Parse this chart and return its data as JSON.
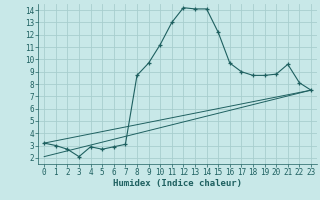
{
  "xlabel": "Humidex (Indice chaleur)",
  "background_color": "#c8e8e8",
  "grid_color": "#a8cece",
  "line_color": "#1e6060",
  "xlim": [
    -0.5,
    23.5
  ],
  "ylim": [
    1.5,
    14.5
  ],
  "xticks": [
    0,
    1,
    2,
    3,
    4,
    5,
    6,
    7,
    8,
    9,
    10,
    11,
    12,
    13,
    14,
    15,
    16,
    17,
    18,
    19,
    20,
    21,
    22,
    23
  ],
  "yticks": [
    2,
    3,
    4,
    5,
    6,
    7,
    8,
    9,
    10,
    11,
    12,
    13,
    14
  ],
  "series1_x": [
    0,
    1,
    2,
    3,
    4,
    5,
    6,
    7,
    8,
    9,
    10,
    11,
    12,
    13,
    14,
    15,
    16,
    17,
    18,
    19,
    20,
    21,
    22,
    23
  ],
  "series1_y": [
    3.2,
    3.0,
    2.7,
    2.1,
    2.9,
    2.7,
    2.9,
    3.1,
    8.7,
    9.7,
    11.2,
    13.0,
    14.2,
    14.1,
    14.1,
    12.2,
    9.7,
    9.0,
    8.7,
    8.7,
    8.8,
    9.6,
    8.1,
    7.5
  ],
  "series2_x": [
    0,
    23
  ],
  "series2_y": [
    3.2,
    7.5
  ],
  "series3_x": [
    0,
    23
  ],
  "series3_y": [
    2.1,
    7.5
  ],
  "tick_fontsize": 5.5,
  "label_fontsize": 6.5
}
